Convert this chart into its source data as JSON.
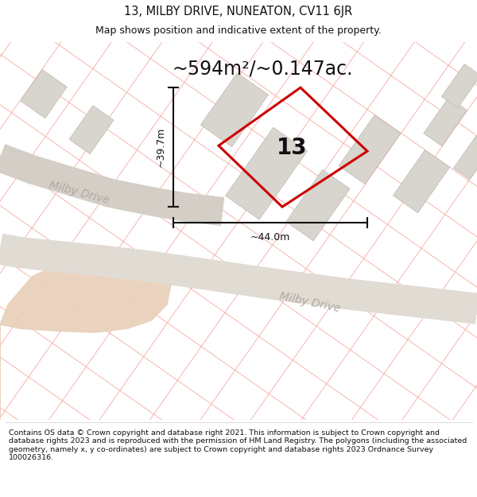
{
  "title": "13, MILBY DRIVE, NUNEATON, CV11 6JR",
  "subtitle": "Map shows position and indicative extent of the property.",
  "area_text": "~594m²/~0.147ac.",
  "width_text": "~44.0m",
  "height_text": "~39.7m",
  "number_label": "13",
  "footer": "Contains OS data © Crown copyright and database right 2021. This information is subject to Crown copyright and database rights 2023 and is reproduced with the permission of HM Land Registry. The polygons (including the associated geometry, namely x, y co-ordinates) are subject to Crown copyright and database rights 2023 Ordnance Survey 100026316.",
  "bg_color": "#ffffff",
  "map_bg": "#f8f5f2",
  "road_fill_color": "#e8e2da",
  "road_label_color": "#b0a8a0",
  "grid_line_color": "#f5a8a0",
  "building_color": "#d8d4ce",
  "building_edge_color": "#c0bab2",
  "plot_outline_color": "#cc0000",
  "dimension_color": "#111111",
  "text_color": "#111111",
  "brown_area_color": "#e8d0b8",
  "figsize": [
    6.0,
    6.25
  ],
  "dpi": 100,
  "title_fontsize": 10.5,
  "subtitle_fontsize": 9,
  "footer_fontsize": 6.8,
  "area_fontsize": 17,
  "label_fontsize": 20,
  "dim_fontsize": 9,
  "road_label_fontsize": 10
}
